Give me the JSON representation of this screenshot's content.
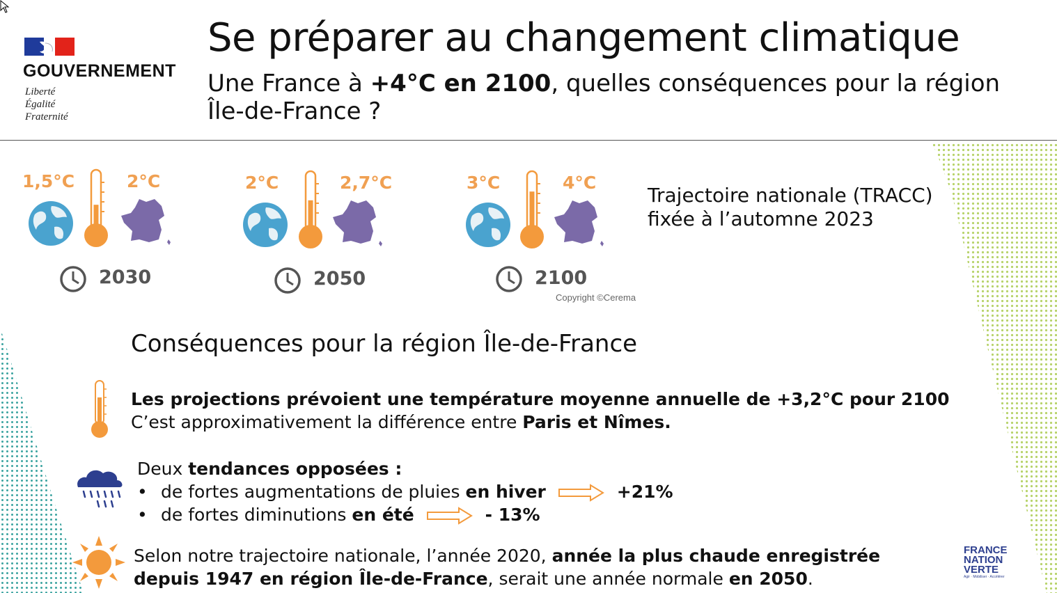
{
  "header": {
    "gov_name": "GOUVERNEMENT",
    "motto": [
      "Liberté",
      "Égalité",
      "Fraternité"
    ],
    "title": "Se préparer au changement climatique",
    "subtitle_pre": "Une France à ",
    "subtitle_bold": "+4°C en 2100",
    "subtitle_post": ", quelles conséquences pour la région Île-de-France ?"
  },
  "scenarios": [
    {
      "world": "1,5°C",
      "france": "2°C",
      "year": "2030",
      "thermo_level": 0.45
    },
    {
      "world": "2°C",
      "france": "2,7°C",
      "year": "2050",
      "thermo_level": 0.55
    },
    {
      "world": "3°C",
      "france": "4°C",
      "year": "2100",
      "thermo_level": 0.7
    }
  ],
  "copyright": "Copyright ©Cerema",
  "tracc": [
    "Trajectoire nationale (TRACC)",
    "fixée à l’automne 2023"
  ],
  "consequences": {
    "title": "Conséquences pour la région Île-de-France",
    "temp_line1": "Les projections prévoient une température moyenne annuelle de +3,2°C pour 2100",
    "temp_line2_pre": "C’est approximativement la différence entre ",
    "temp_line2_bold": "Paris et Nîmes.",
    "rain_intro_pre": "Deux ",
    "rain_intro_bold": "tendances opposées :",
    "rain_bullets": [
      {
        "bullet": "•",
        "text": "de fortes augmentations de pluies ",
        "bold": "en hiver",
        "value": "+21%"
      },
      {
        "bullet": "•",
        "text": "de fortes diminutions ",
        "bold": "en été",
        "value": "- 13%"
      }
    ],
    "heat_line1_pre": "Selon notre trajectoire nationale, l’année 2020, ",
    "heat_line1_bold": "année la plus chaude enregistrée",
    "heat_line2_bold": "depuis 1947 en région Île-de-France",
    "heat_line2_mid": ", serait une année normale ",
    "heat_line2_bold2": "en 2050",
    "heat_line2_end": "."
  },
  "footer_logo": {
    "line1": "FRANCE",
    "line2": "NATION",
    "line3": "VERTE",
    "tagline": "Agir · Mobiliser · Accélérer"
  },
  "colors": {
    "orange": "#f0a052",
    "thermo": "#f39a3c",
    "globe": "#4aa3cf",
    "france": "#7b6aa8",
    "rain": "#2d3f8f",
    "green_dots": "#b7d36a",
    "teal_dots": "#3aa3a0"
  }
}
